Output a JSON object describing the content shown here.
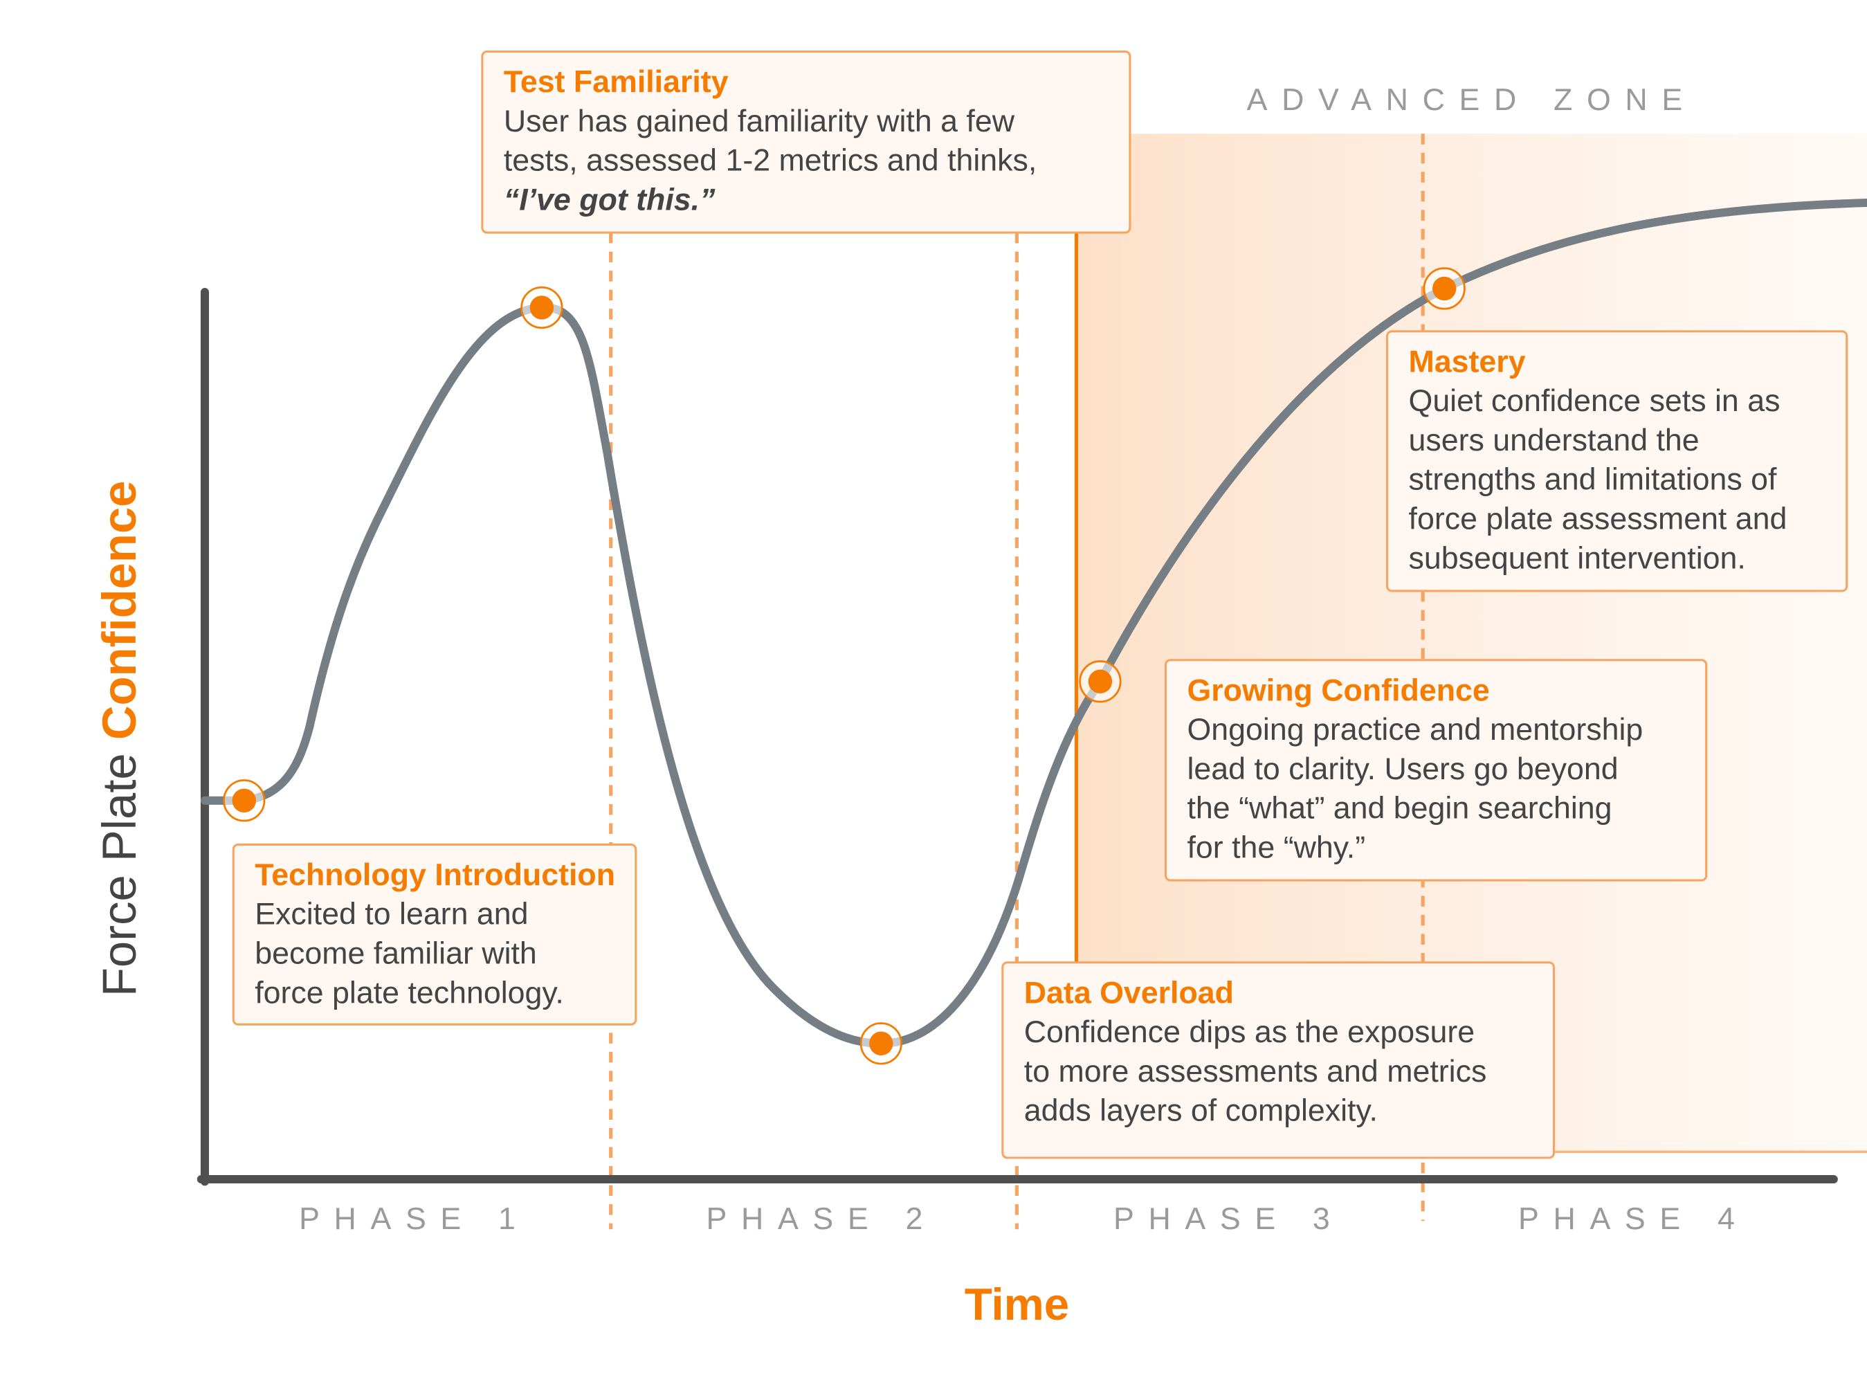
{
  "axis": {
    "y_label_prefix": "Force Plate",
    "y_label_emphasis": "Confidence",
    "x_label": "Time"
  },
  "zone": "ADVANCED ZONE",
  "phases": [
    "PHASE 1",
    "PHASE 2",
    "PHASE 3",
    "PHASE 4"
  ],
  "callouts": [
    {
      "title": "Test Familiarity",
      "lines": [
        "User has gained familiarity with a few",
        "tests, assessed 1-2 metrics and thinks,"
      ],
      "quote": "“I’ve got this.”"
    },
    {
      "title": "Technology Introduction",
      "lines": [
        "Excited to learn and",
        "become familiar with",
        "force plate technology."
      ]
    },
    {
      "title": "Mastery",
      "lines": [
        "Quiet confidence sets in as",
        "users understand the",
        "strengths and limitations of",
        "force plate assessment and",
        "subsequent intervention."
      ]
    },
    {
      "title": "Growing Confidence",
      "lines": [
        "Ongoing practice and mentorship",
        "lead to clarity. Users go beyond",
        "the “what” and begin searching",
        "for the “why.”"
      ]
    },
    {
      "title": "Data Overload",
      "lines": [
        "Confidence dips as the exposure",
        "to more assessments and metrics",
        "adds layers of complexity."
      ]
    }
  ]
}
